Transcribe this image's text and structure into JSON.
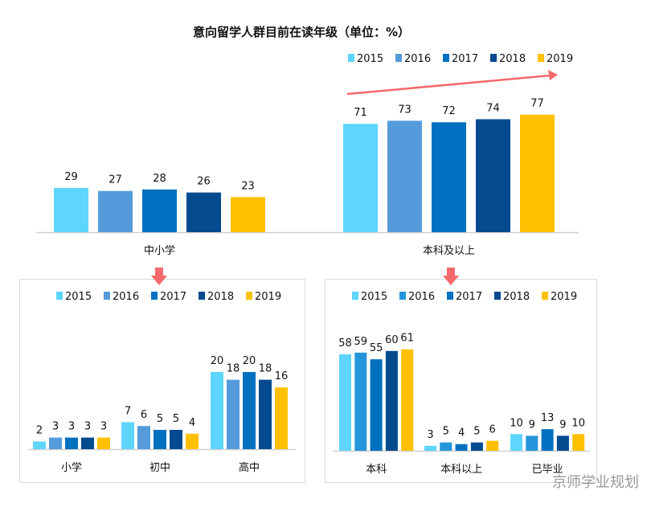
{
  "title": "意向留学人群目前在读年级（单位：%）",
  "colors": {
    "2015": "#5ED5FE",
    "2016": "#559BDC",
    "2017": "#0070C0",
    "2018": "#034A8F",
    "2019": "#FFC000",
    "2016_alt": "#2596DB",
    "arrow": "#F4696B"
  },
  "watermark": "京师学业规划",
  "chart_data": [
    {
      "type": "bar",
      "title": "意向留学人群目前在读年级（单位：%）",
      "categories": [
        "中小学",
        "本科及以上"
      ],
      "legend": "top-right",
      "series": [
        {
          "name": "2015",
          "values": [
            29,
            71
          ]
        },
        {
          "name": "2016",
          "values": [
            27,
            73
          ]
        },
        {
          "name": "2017",
          "values": [
            28,
            72
          ]
        },
        {
          "name": "2018",
          "values": [
            26,
            74
          ]
        },
        {
          "name": "2019",
          "values": [
            23,
            77
          ]
        }
      ]
    },
    {
      "type": "bar",
      "categories": [
        "小学",
        "初中",
        "高中"
      ],
      "legend": "top",
      "series": [
        {
          "name": "2015",
          "values": [
            2,
            7,
            20
          ]
        },
        {
          "name": "2016",
          "values": [
            3,
            6,
            18
          ]
        },
        {
          "name": "2017",
          "values": [
            3,
            5,
            20
          ]
        },
        {
          "name": "2018",
          "values": [
            3,
            5,
            18
          ]
        },
        {
          "name": "2019",
          "values": [
            3,
            4,
            16
          ]
        }
      ]
    },
    {
      "type": "bar",
      "categories": [
        "本科",
        "本科以上",
        "已毕业"
      ],
      "legend": "top",
      "series": [
        {
          "name": "2015",
          "values": [
            58,
            3,
            10
          ]
        },
        {
          "name": "2016",
          "values": [
            59,
            5,
            9
          ]
        },
        {
          "name": "2017",
          "values": [
            55,
            4,
            13
          ]
        },
        {
          "name": "2018",
          "values": [
            60,
            5,
            9
          ]
        },
        {
          "name": "2019",
          "values": [
            61,
            6,
            10
          ]
        }
      ]
    }
  ]
}
